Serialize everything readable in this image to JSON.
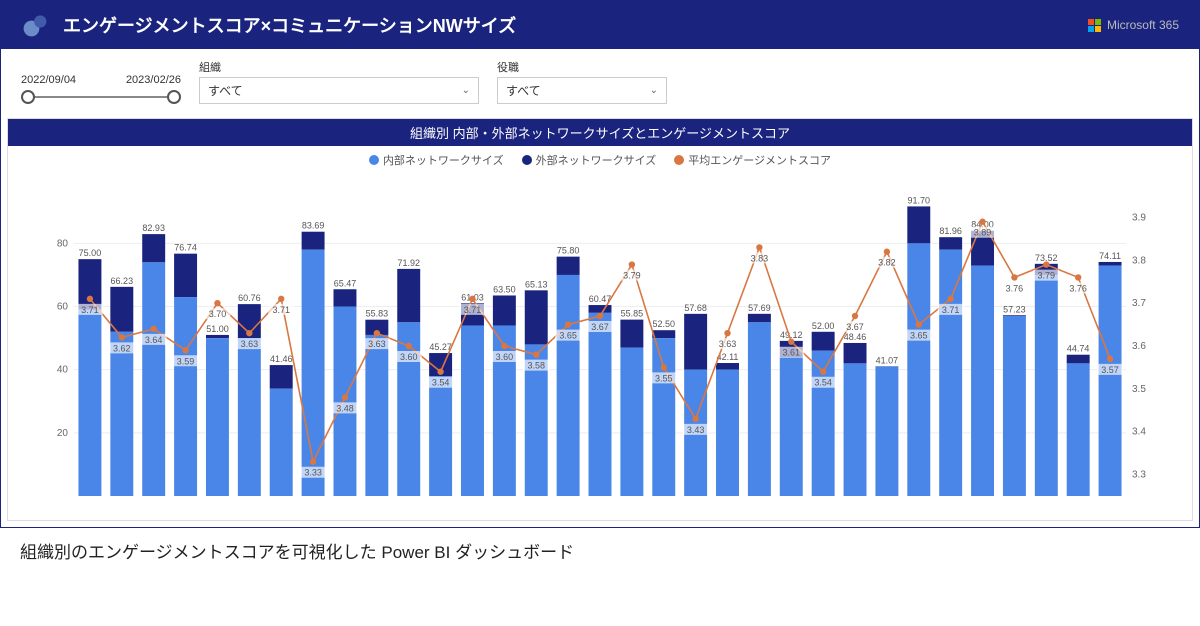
{
  "header": {
    "title": "エンゲージメントスコア×コミュニケーションNWサイズ",
    "brand_label": "Microsoft 365"
  },
  "filters": {
    "date_start": "2022/09/04",
    "date_end": "2023/02/26",
    "org_label": "組織",
    "org_value": "すべて",
    "role_label": "役職",
    "role_value": "すべて"
  },
  "caption": "組織別のエンゲージメントスコアを可視化した Power BI ダッシュボード",
  "chart": {
    "title": "組織別 内部・外部ネットワークサイズとエンゲージメントスコア",
    "legend": {
      "internal": "内部ネットワークサイズ",
      "external": "外部ネットワークサイズ",
      "score": "平均エンゲージメントスコア"
    },
    "colors": {
      "internal": "#4a86e8",
      "external": "#1a237e",
      "score_line": "#d97742",
      "score_dot": "#d97742",
      "header_bg": "#1a237e",
      "grid": "#eeeeee",
      "axis_text": "#666666",
      "bg": "#ffffff"
    },
    "y_left": {
      "min": 0,
      "max": 95,
      "ticks": [
        20,
        40,
        60,
        80
      ]
    },
    "y_right": {
      "min": 3.25,
      "max": 3.95,
      "ticks": [
        3.3,
        3.4,
        3.5,
        3.6,
        3.7,
        3.8,
        3.9
      ]
    },
    "bar_gap_ratio": 0.28,
    "font": {
      "tick_size": 10,
      "label_size": 9,
      "title_size": 13,
      "legend_size": 11
    },
    "data": [
      {
        "total": 75.0,
        "internal": 59,
        "score": 3.71
      },
      {
        "total": 66.23,
        "internal": 52,
        "score": 3.62
      },
      {
        "total": 82.93,
        "internal": 74,
        "score": 3.64
      },
      {
        "total": 76.74,
        "internal": 63,
        "score": 3.59
      },
      {
        "total": 51.0,
        "internal": 50,
        "score": 3.7
      },
      {
        "total": 60.76,
        "internal": 50,
        "score": 3.63
      },
      {
        "total": 41.46,
        "internal": 34,
        "score": 3.71
      },
      {
        "total": 83.69,
        "internal": 78,
        "score": 3.33
      },
      {
        "total": 65.47,
        "internal": 60,
        "score": 3.48
      },
      {
        "total": 55.83,
        "internal": 51,
        "score": 3.63
      },
      {
        "total": 71.92,
        "internal": 55,
        "score": 3.6
      },
      {
        "total": 45.27,
        "internal": 38,
        "score": 3.54
      },
      {
        "total": 61.03,
        "internal": 54,
        "score": 3.71
      },
      {
        "total": 63.5,
        "internal": 54,
        "score": 3.6
      },
      {
        "total": 65.13,
        "internal": 48,
        "score": 3.58
      },
      {
        "total": 75.8,
        "internal": 70,
        "score": 3.65
      },
      {
        "total": 60.47,
        "internal": 58,
        "score": 3.67
      },
      {
        "total": 55.85,
        "internal": 47,
        "score": 3.79
      },
      {
        "total": 52.5,
        "internal": 50,
        "score": 3.55
      },
      {
        "total": 57.68,
        "internal": 40,
        "score": 3.43
      },
      {
        "total": 42.11,
        "internal": 40,
        "score": 3.63
      },
      {
        "total": 57.69,
        "internal": 55,
        "score": 3.83
      },
      {
        "total": 49.12,
        "internal": 44,
        "score": 3.61
      },
      {
        "total": 52.0,
        "internal": 46,
        "score": 3.54
      },
      {
        "total": 48.46,
        "internal": 42,
        "score": 3.67
      },
      {
        "total": 41.07,
        "internal": 41,
        "score": 3.82
      },
      {
        "total": 91.7,
        "internal": 80,
        "score": 3.65
      },
      {
        "total": 81.96,
        "internal": 78,
        "score": 3.71
      },
      {
        "total": 84.0,
        "internal": 73,
        "score": 3.89
      },
      {
        "total": 57.23,
        "internal": 57,
        "score": 3.76
      },
      {
        "total": 73.52,
        "internal": 70,
        "score": 3.79
      },
      {
        "total": 44.74,
        "internal": 42,
        "score": 3.76
      },
      {
        "total": 74.11,
        "internal": 73,
        "score": 3.57
      }
    ]
  }
}
